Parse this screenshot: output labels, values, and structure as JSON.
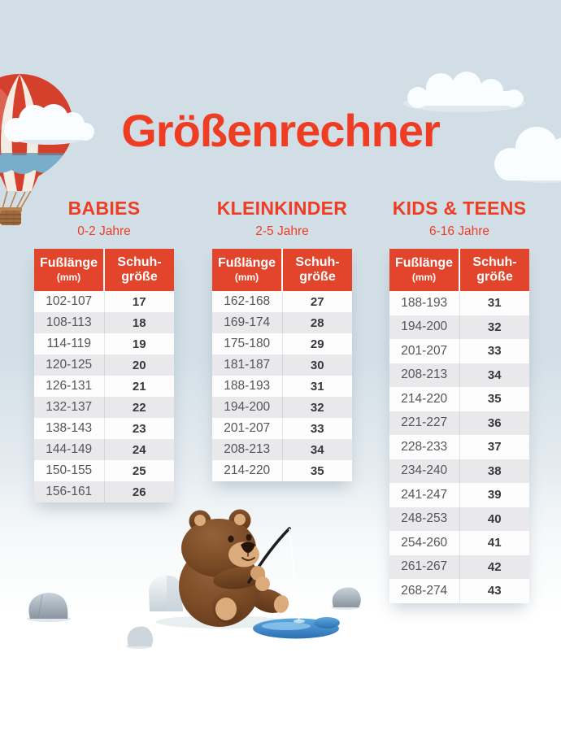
{
  "title": "Größenrechner",
  "table_header": {
    "foot_label": "Fußlänge",
    "foot_unit": "(mm)",
    "size_label_line1": "Schuh-",
    "size_label_line2": "größe"
  },
  "sections": [
    {
      "heading": "BABIES",
      "age_range": "0-2 Jahre",
      "rows": [
        [
          "102-107",
          "17"
        ],
        [
          "108-113",
          "18"
        ],
        [
          "114-119",
          "19"
        ],
        [
          "120-125",
          "20"
        ],
        [
          "126-131",
          "21"
        ],
        [
          "132-137",
          "22"
        ],
        [
          "138-143",
          "23"
        ],
        [
          "144-149",
          "24"
        ],
        [
          "150-155",
          "25"
        ],
        [
          "156-161",
          "26"
        ]
      ]
    },
    {
      "heading": "KLEINKINDER",
      "age_range": "2-5 Jahre",
      "rows": [
        [
          "162-168",
          "27"
        ],
        [
          "169-174",
          "28"
        ],
        [
          "175-180",
          "29"
        ],
        [
          "181-187",
          "30"
        ],
        [
          "188-193",
          "31"
        ],
        [
          "194-200",
          "32"
        ],
        [
          "201-207",
          "33"
        ],
        [
          "208-213",
          "34"
        ],
        [
          "214-220",
          "35"
        ]
      ]
    },
    {
      "heading": "KIDS & TEENS",
      "age_range": "6-16 Jahre",
      "rows": [
        [
          "188-193",
          "31"
        ],
        [
          "194-200",
          "32"
        ],
        [
          "201-207",
          "33"
        ],
        [
          "208-213",
          "34"
        ],
        [
          "214-220",
          "35"
        ],
        [
          "221-227",
          "36"
        ],
        [
          "228-233",
          "37"
        ],
        [
          "234-240",
          "38"
        ],
        [
          "241-247",
          "39"
        ],
        [
          "248-253",
          "40"
        ],
        [
          "254-260",
          "41"
        ],
        [
          "261-267",
          "42"
        ],
        [
          "268-274",
          "43"
        ]
      ]
    }
  ],
  "colors": {
    "title_red": "#ee3d23",
    "header_red": "#e2452c",
    "row_alt_gray": "#e9e9eb",
    "row_white": "#fdfdfe",
    "background_top": "#d2dee6",
    "background_bottom": "#ffffff",
    "puddle_blue": "#3f87cc"
  },
  "illustrations": [
    "hot-air-balloon",
    "cloud",
    "teddy-bear-fishing",
    "stones",
    "water-puddle"
  ]
}
